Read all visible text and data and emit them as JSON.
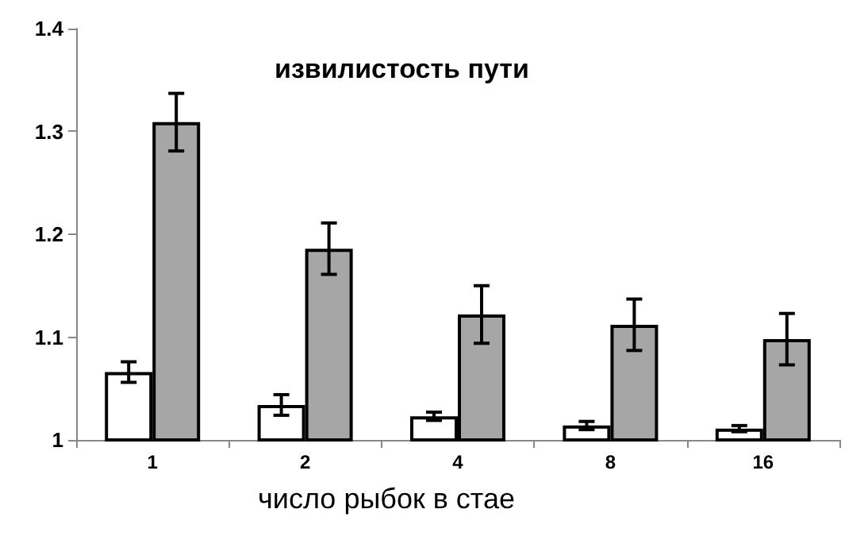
{
  "chart_data": {
    "type": "bar",
    "title": "извилистость пути",
    "xlabel": "число рыбок в стае",
    "categories": [
      "1",
      "2",
      "4",
      "8",
      "16"
    ],
    "series": [
      {
        "color": "#ffffff",
        "values": [
          1.066,
          1.034,
          1.023,
          1.014,
          1.011
        ],
        "errors": [
          0.01,
          0.01,
          0.004,
          0.004,
          0.003
        ]
      },
      {
        "color": "#a6a6a6",
        "values": [
          1.309,
          1.186,
          1.122,
          1.112,
          1.098
        ],
        "errors": [
          0.028,
          0.025,
          0.028,
          0.025,
          0.025
        ]
      }
    ],
    "ylim": [
      1,
      1.4
    ],
    "yticks": [
      1,
      1.1,
      1.2,
      1.3,
      1.4
    ],
    "grid": false
  }
}
